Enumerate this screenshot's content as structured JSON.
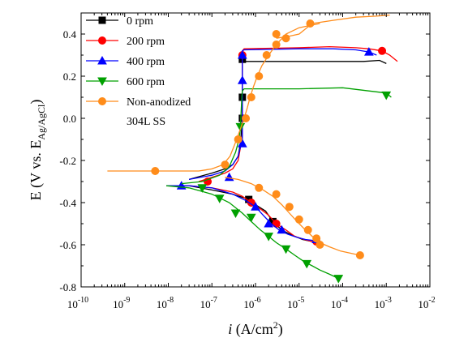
{
  "chart_data": {
    "type": "line",
    "title": "",
    "xlabel": {
      "italic": "i",
      "rest": " (A/cm",
      "sup": "2",
      "end": ")"
    },
    "ylabel": {
      "main": "E (V vs. E",
      "sub": "Ag/AgCl",
      "end": ")"
    },
    "x_scale": "log",
    "xlim": [
      1e-10,
      0.01
    ],
    "ylim": [
      -0.8,
      0.5
    ],
    "x_ticks": [
      {
        "base": "10",
        "exp": "-10",
        "value": 1e-10
      },
      {
        "base": "10",
        "exp": "-9",
        "value": 1e-09
      },
      {
        "base": "10",
        "exp": "-8",
        "value": 1e-08
      },
      {
        "base": "10",
        "exp": "-7",
        "value": 1e-07
      },
      {
        "base": "10",
        "exp": "-6",
        "value": 1e-06
      },
      {
        "base": "10",
        "exp": "-5",
        "value": 1e-05
      },
      {
        "base": "10",
        "exp": "-4",
        "value": 0.0001
      },
      {
        "base": "10",
        "exp": "-3",
        "value": 0.001
      },
      {
        "base": "10",
        "exp": "-2",
        "value": 0.01
      }
    ],
    "y_ticks": [
      "-0.8",
      "-0.6",
      "-0.4",
      "-0.2",
      "0.0",
      "0.2",
      "0.4"
    ],
    "legend_position": "top-left",
    "series": [
      {
        "name": "0   rpm",
        "color": "#000000",
        "marker": "square",
        "x": [
          3e-08,
          1e-07,
          2e-07,
          3e-07,
          4e-07,
          4.5e-07,
          4.8e-07,
          5e-07,
          5e-07,
          5e-07,
          5e-07,
          5e-07,
          5e-07,
          5e-07,
          5e-07,
          5e-07,
          0.0003,
          0.0007,
          0.001
        ],
        "y": [
          -0.29,
          -0.26,
          -0.24,
          -0.22,
          -0.18,
          -0.12,
          -0.05,
          0.0,
          0.05,
          0.1,
          0.15,
          0.2,
          0.24,
          0.27,
          0.28,
          0.27,
          0.27,
          0.275,
          0.26
        ],
        "cathodic_x": [
          1e-08,
          3e-08,
          1e-07,
          3e-07,
          5e-07,
          7e-07,
          1e-06,
          1.7e-06,
          2.5e-06,
          4e-06,
          7e-06,
          1.2e-05,
          2e-05,
          3e-05
        ],
        "cathodic_y": [
          -0.32,
          -0.32,
          -0.34,
          -0.36,
          -0.375,
          -0.385,
          -0.41,
          -0.44,
          -0.49,
          -0.53,
          -0.555,
          -0.575,
          -0.585,
          -0.59
        ],
        "marker_x": [
          5e-07,
          5e-07,
          5e-07,
          7e-07,
          2.5e-06
        ],
        "marker_y": [
          0.0,
          0.1,
          0.28,
          -0.385,
          -0.49
        ]
      },
      {
        "name": "200 rpm",
        "color": "#ff0000",
        "marker": "circle",
        "x": [
          5e-08,
          1e-07,
          2e-07,
          3e-07,
          4e-07,
          4.5e-07,
          5e-07,
          5e-07,
          5e-07,
          5e-07,
          5e-07,
          5e-07,
          5e-07,
          5.5e-07,
          1e-05,
          5e-05,
          0.0002,
          0.0004,
          0.0008,
          0.0012,
          0.0018
        ],
        "y": [
          -0.3,
          -0.28,
          -0.26,
          -0.24,
          -0.2,
          -0.14,
          -0.08,
          0.0,
          0.08,
          0.16,
          0.24,
          0.3,
          0.32,
          0.33,
          0.335,
          0.34,
          0.335,
          0.33,
          0.32,
          0.3,
          0.27
        ],
        "cathodic_x": [
          9e-09,
          3e-08,
          1e-07,
          3e-07,
          5e-07,
          8e-07,
          1.3e-06,
          2e-06,
          3e-06,
          5e-06,
          8e-06,
          1.3e-05,
          2e-05,
          3.2e-05
        ],
        "cathodic_y": [
          -0.32,
          -0.32,
          -0.33,
          -0.35,
          -0.37,
          -0.4,
          -0.43,
          -0.46,
          -0.5,
          -0.53,
          -0.56,
          -0.575,
          -0.585,
          -0.59
        ],
        "marker_x": [
          8e-08,
          5e-07,
          8e-07,
          3e-06,
          2.5e-05,
          0.0008
        ],
        "marker_y": [
          -0.3,
          0.3,
          -0.4,
          -0.5,
          -0.585,
          0.32
        ]
      },
      {
        "name": "400 rpm",
        "color": "#0000ff",
        "marker": "triangle-up",
        "x": [
          3e-08,
          1e-07,
          2e-07,
          3e-07,
          4e-07,
          5e-07,
          5e-07,
          5e-07,
          5e-07,
          5e-07,
          5e-07,
          5e-07,
          5e-07,
          5.5e-07,
          1e-05,
          6e-05,
          0.0002,
          0.0004,
          0.0006
        ],
        "y": [
          -0.29,
          -0.27,
          -0.25,
          -0.22,
          -0.18,
          -0.1,
          -0.02,
          0.05,
          0.12,
          0.2,
          0.26,
          0.3,
          0.32,
          0.325,
          0.33,
          0.33,
          0.325,
          0.315,
          0.3
        ],
        "cathodic_x": [
          9e-09,
          3e-08,
          1e-07,
          3e-07,
          6e-07,
          1e-06,
          1.5e-06,
          2.3e-06,
          3.5e-06,
          5.5e-06,
          9e-06,
          1.4e-05,
          2.2e-05,
          3.2e-05
        ],
        "cathodic_y": [
          -0.32,
          -0.32,
          -0.33,
          -0.36,
          -0.39,
          -0.42,
          -0.46,
          -0.5,
          -0.53,
          -0.55,
          -0.565,
          -0.575,
          -0.58,
          -0.585
        ],
        "marker_x": [
          2e-08,
          2.5e-07,
          5e-07,
          5e-07,
          5e-07,
          1e-06,
          2e-06,
          4e-06,
          2.5e-05,
          0.0004
        ],
        "marker_y": [
          -0.32,
          -0.28,
          -0.12,
          0.18,
          0.3,
          -0.42,
          -0.5,
          -0.53,
          -0.575,
          0.315
        ]
      },
      {
        "name": "600 rpm",
        "color": "#00a000",
        "marker": "triangle-down",
        "x": [
          2e-08,
          6e-08,
          1.5e-07,
          2.5e-07,
          3.5e-07,
          4.2e-07,
          4.5e-07,
          4.6e-07,
          4.7e-07,
          4.8e-07,
          4.9e-07,
          5e-07,
          5.5e-07,
          1e-05,
          0.0001,
          0.001,
          0.0013
        ],
        "y": [
          -0.31,
          -0.3,
          -0.27,
          -0.23,
          -0.16,
          -0.1,
          -0.05,
          0.0,
          0.04,
          0.08,
          0.11,
          0.13,
          0.14,
          0.14,
          0.145,
          0.12,
          0.1
        ],
        "cathodic_x": [
          9e-09,
          3e-08,
          1e-07,
          2.5e-07,
          5e-07,
          8e-07,
          1.3e-06,
          2e-06,
          3e-06,
          5e-06,
          8e-06,
          1.3e-05,
          2e-05,
          3e-05,
          5e-05,
          8e-05
        ],
        "cathodic_y": [
          -0.32,
          -0.33,
          -0.36,
          -0.4,
          -0.45,
          -0.49,
          -0.53,
          -0.56,
          -0.59,
          -0.62,
          -0.65,
          -0.68,
          -0.7,
          -0.72,
          -0.74,
          -0.76
        ],
        "marker_x": [
          6e-08,
          1.5e-07,
          3.5e-07,
          4.5e-07,
          8e-07,
          2e-06,
          5e-06,
          1.5e-05,
          8e-05,
          0.001
        ],
        "marker_y": [
          -0.33,
          -0.38,
          -0.45,
          -0.04,
          -0.47,
          -0.56,
          -0.62,
          -0.69,
          -0.76,
          0.11
        ]
      },
      {
        "name": "Non-anodized\n304L SS",
        "color": "#ff8c1a",
        "marker": "circle",
        "x": [
          4e-10,
          3e-09,
          1.5e-08,
          5e-08,
          1e-07,
          1.8e-07,
          2.6e-07,
          3.4e-07,
          4.5e-07,
          5.5e-07,
          6.5e-07,
          7.5e-07,
          9e-07,
          1.1e-06,
          1.4e-06,
          2e-06,
          3e-06,
          5e-06,
          1e-05,
          3e-05
        ],
        "y": [
          -0.25,
          -0.25,
          -0.25,
          -0.25,
          -0.24,
          -0.22,
          -0.18,
          -0.12,
          -0.05,
          0.0,
          0.05,
          0.1,
          0.15,
          0.2,
          0.25,
          0.3,
          0.35,
          0.4,
          0.43,
          0.45
        ],
        "branch2_x": [
          3e-06,
          6e-06,
          1e-05,
          2e-05,
          6e-05,
          0.0002,
          0.0006,
          0.0012
        ],
        "branch2_y": [
          0.38,
          0.39,
          0.4,
          0.45,
          0.465,
          0.48,
          0.485,
          0.49
        ],
        "cathodic_x": [
          2e-07,
          4e-07,
          8e-07,
          1.5e-06,
          2.5e-06,
          4e-06,
          6e-06,
          9e-06,
          1.4e-05,
          2e-05,
          3e-05,
          5e-05,
          9e-05,
          0.00015,
          0.00025
        ],
        "cathodic_y": [
          -0.28,
          -0.29,
          -0.31,
          -0.34,
          -0.37,
          -0.41,
          -0.45,
          -0.49,
          -0.53,
          -0.56,
          -0.59,
          -0.61,
          -0.63,
          -0.64,
          -0.65
        ],
        "marker_x": [
          5e-09,
          2e-07,
          4e-07,
          6e-07,
          8e-07,
          1.2e-06,
          1.8e-06,
          3e-06,
          1.2e-06,
          3e-06,
          6e-06,
          1e-05,
          1.6e-05,
          2.5e-05,
          3e-05,
          0.00025,
          3e-06,
          5e-06,
          1.8e-05
        ],
        "marker_y": [
          -0.25,
          -0.22,
          -0.1,
          0.0,
          0.1,
          0.2,
          0.3,
          0.35,
          -0.33,
          -0.36,
          -0.42,
          -0.48,
          -0.53,
          -0.57,
          -0.6,
          -0.65,
          0.4,
          0.38,
          0.45
        ]
      }
    ]
  }
}
